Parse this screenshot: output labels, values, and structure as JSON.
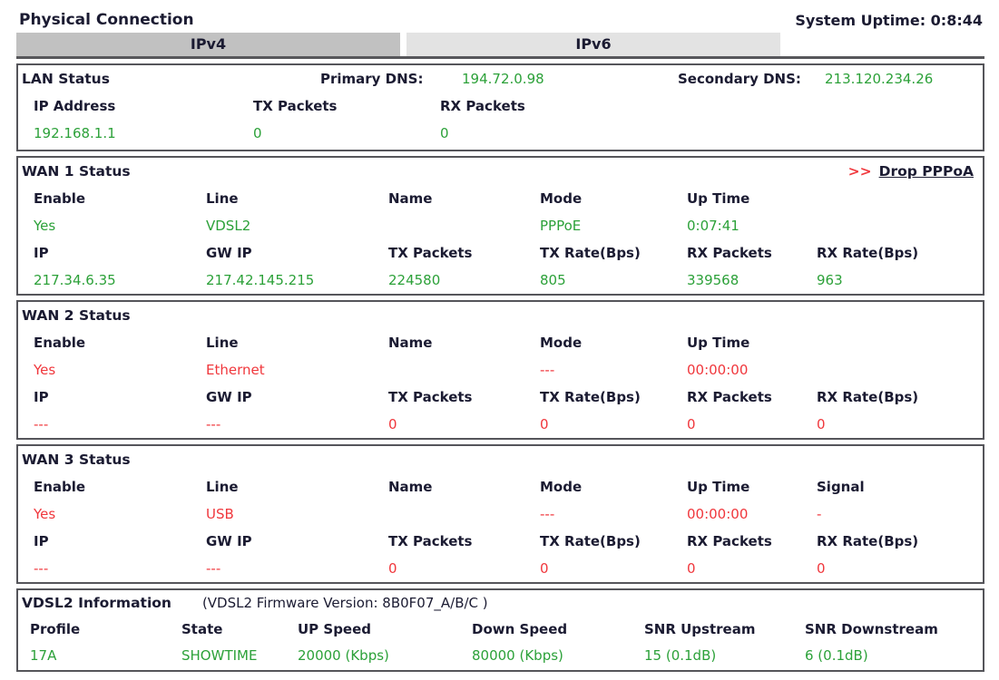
{
  "colors": {
    "green": "#2ca139",
    "red": "#f0373c",
    "label": "#1b1b32"
  },
  "page": {
    "title": "Physical Connection",
    "uptime": "System Uptime: 0:8:44"
  },
  "tabs": [
    {
      "label": "IPv4",
      "active": true
    },
    {
      "label": "IPv6",
      "active": false
    }
  ],
  "lan": {
    "title": "LAN Status",
    "primary_dns_label": "Primary DNS:",
    "primary_dns_value": "194.72.0.98",
    "secondary_dns_label": "Secondary DNS:",
    "secondary_dns_value": "213.120.234.26",
    "columns": [
      "IP Address",
      "TX Packets",
      "RX Packets"
    ],
    "values": [
      "192.168.1.1",
      "0",
      "0"
    ]
  },
  "wans": [
    {
      "title": "WAN 1 Status",
      "action_arrows": ">>",
      "action_label": "Drop PPPoA",
      "value_color": "vgreen",
      "labels1": [
        "Enable",
        "Line",
        "Name",
        "Mode",
        "Up Time",
        ""
      ],
      "values1": [
        "Yes",
        "VDSL2",
        "",
        "PPPoE",
        "0:07:41",
        ""
      ],
      "labels2": [
        "IP",
        "GW IP",
        "TX Packets",
        "TX Rate(Bps)",
        "RX Packets",
        "RX Rate(Bps)"
      ],
      "values2": [
        "217.34.6.35",
        "217.42.145.215",
        "224580",
        "805",
        "339568",
        "963"
      ]
    },
    {
      "title": "WAN 2 Status",
      "value_color": "vred",
      "labels1": [
        "Enable",
        "Line",
        "Name",
        "Mode",
        "Up Time",
        ""
      ],
      "values1": [
        "Yes",
        "Ethernet",
        "",
        "---",
        "00:00:00",
        ""
      ],
      "labels2": [
        "IP",
        "GW IP",
        "TX Packets",
        "TX Rate(Bps)",
        "RX Packets",
        "RX Rate(Bps)"
      ],
      "values2": [
        "---",
        "---",
        "0",
        "0",
        "0",
        "0"
      ]
    },
    {
      "title": "WAN 3 Status",
      "value_color": "vred",
      "labels1": [
        "Enable",
        "Line",
        "Name",
        "Mode",
        "Up Time",
        "Signal"
      ],
      "values1": [
        "Yes",
        "USB",
        "",
        "---",
        "00:00:00",
        "-"
      ],
      "labels2": [
        "IP",
        "GW IP",
        "TX Packets",
        "TX Rate(Bps)",
        "RX Packets",
        "RX Rate(Bps)"
      ],
      "values2": [
        "---",
        "---",
        "0",
        "0",
        "0",
        "0"
      ]
    }
  ],
  "vdsl2": {
    "title": "VDSL2 Information",
    "firmware_note": "(VDSL2 Firmware Version:  8B0F07_A/B/C )",
    "columns": [
      "Profile",
      "State",
      "UP Speed",
      "Down Speed",
      "SNR Upstream",
      "SNR Downstream"
    ],
    "values": [
      "17A",
      "SHOWTIME",
      "20000 (Kbps)",
      "80000 (Kbps)",
      "15 (0.1dB)",
      "6 (0.1dB)"
    ]
  }
}
